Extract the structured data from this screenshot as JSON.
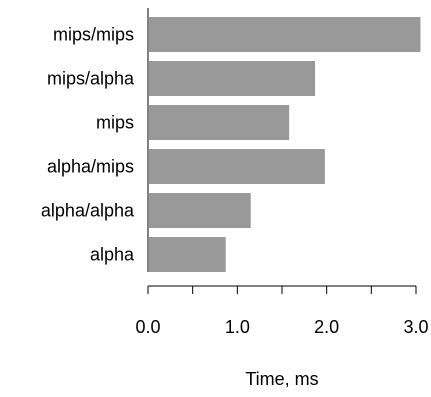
{
  "chart_data": {
    "type": "bar",
    "orientation": "horizontal",
    "categories": [
      "mips/mips",
      "mips/alpha",
      "mips",
      "alpha/mips",
      "alpha/alpha",
      "alpha"
    ],
    "values": [
      3.05,
      1.87,
      1.58,
      1.98,
      1.15,
      0.87
    ],
    "xlabel": "Time, ms",
    "ylabel": "",
    "xlim": [
      0.0,
      3.0
    ],
    "xticks": [
      0.0,
      0.5,
      1.0,
      1.5,
      2.0,
      2.5,
      3.0
    ],
    "xtick_labels": [
      "0.0",
      "1.0",
      "2.0",
      "3.0"
    ],
    "bar_color": "#999999",
    "grid": false,
    "legend": "none"
  }
}
